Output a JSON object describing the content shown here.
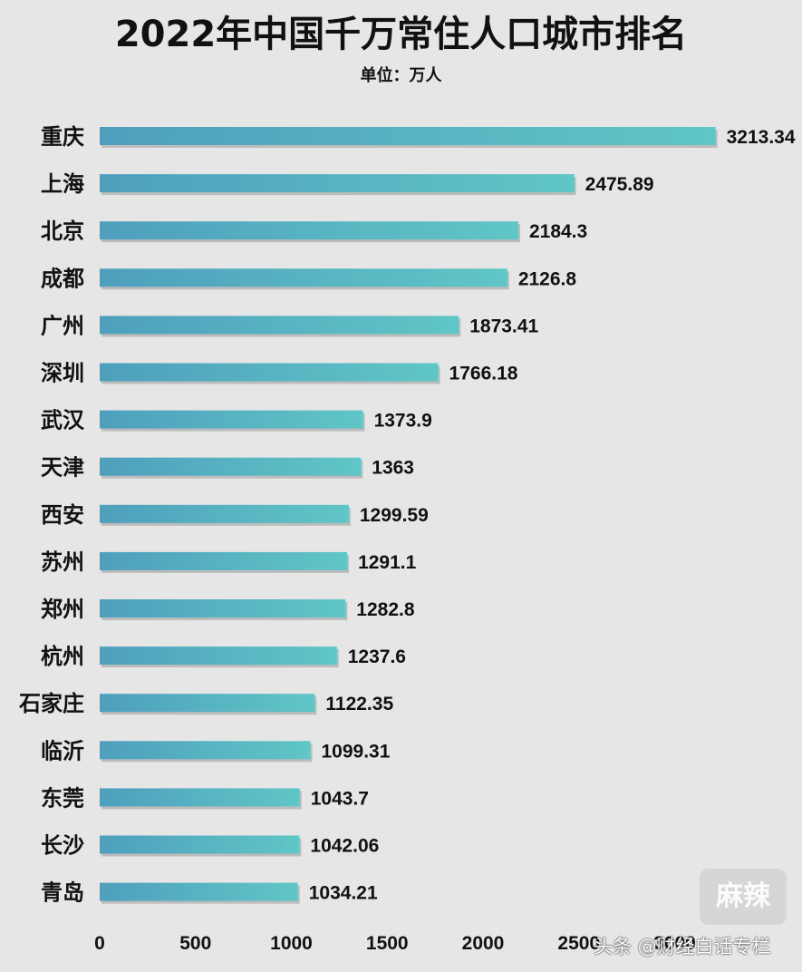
{
  "chart_data": {
    "type": "bar",
    "orientation": "horizontal",
    "title": "2022年中国千万常住人口城市排名",
    "subtitle": "单位：万人",
    "categories": [
      "重庆",
      "上海",
      "北京",
      "成都",
      "广州",
      "深圳",
      "武汉",
      "天津",
      "西安",
      "苏州",
      "郑州",
      "杭州",
      "石家庄",
      "临沂",
      "东莞",
      "长沙",
      "青岛"
    ],
    "values": [
      3213.34,
      2475.89,
      2184.3,
      2126.8,
      1873.41,
      1766.18,
      1373.9,
      1363,
      1299.59,
      1291.1,
      1282.8,
      1237.6,
      1122.35,
      1099.31,
      1043.7,
      1042.06,
      1034.21
    ],
    "value_labels": [
      "3213.34",
      "2475.89",
      "2184.3",
      "2126.8",
      "1873.41",
      "1766.18",
      "1373.9",
      "1363",
      "1299.59",
      "1291.1",
      "1282.8",
      "1237.6",
      "1122.35",
      "1099.31",
      "1043.7",
      "1042.06",
      "1034.21"
    ],
    "xticks": [
      0,
      500,
      1000,
      1500,
      2000,
      2500,
      3000
    ],
    "xtick_labels": [
      "0",
      "500",
      "1000",
      "1500",
      "2000",
      "2500",
      "3000"
    ],
    "xlim": [
      0,
      3500
    ],
    "grid": false,
    "colors": {
      "bar_start": "#4e9fbd",
      "bar_end": "#60c6c6",
      "background": "#e6e6e6"
    }
  },
  "watermark": "头条 @财经白话专栏",
  "logo_text": "麻辣"
}
